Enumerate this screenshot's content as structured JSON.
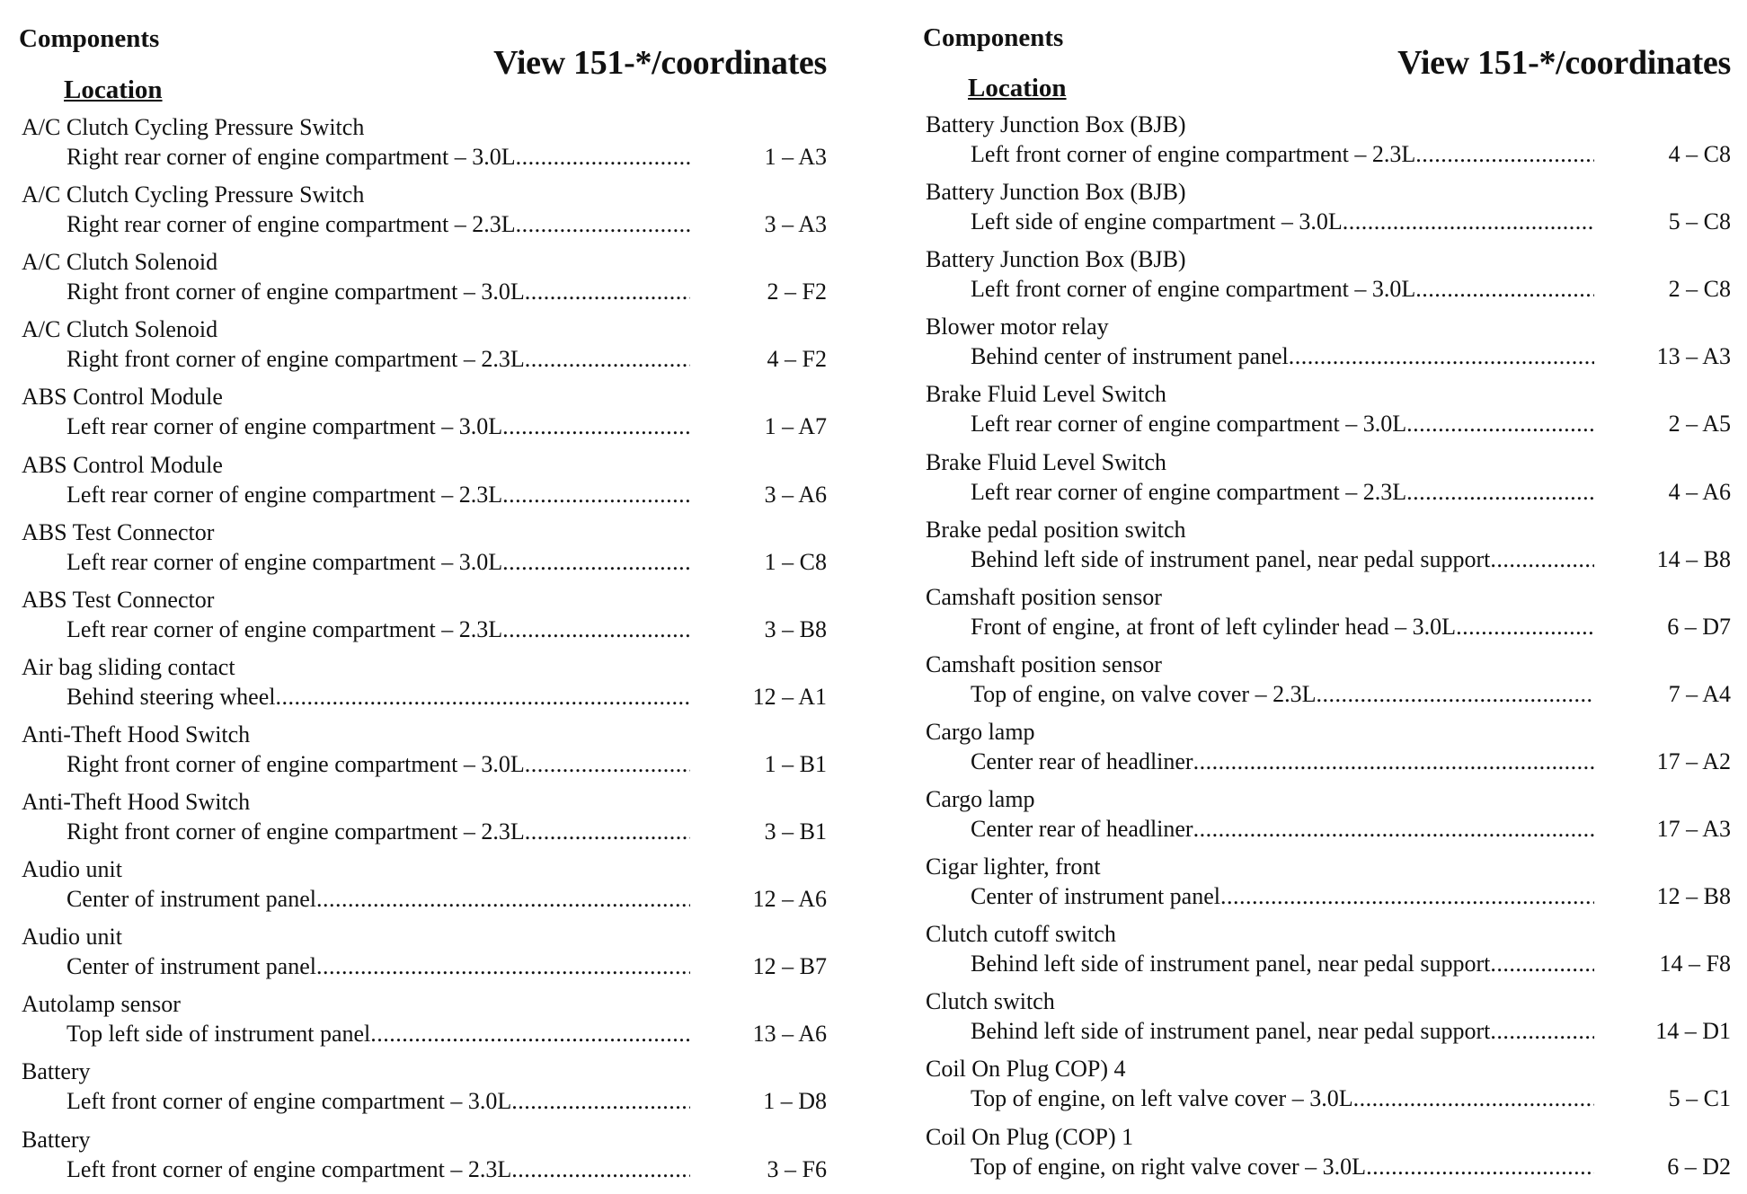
{
  "left": {
    "heading_components": "Components",
    "heading_location": "Location",
    "heading_view": "View 151-*/coordinates",
    "entries": [
      {
        "name": "A/C Clutch Cycling Pressure Switch",
        "location": "Right rear corner of engine compartment – 3.0L",
        "code": "1 – A3"
      },
      {
        "name": "A/C Clutch Cycling Pressure Switch",
        "location": "Right rear corner of engine compartment – 2.3L",
        "code": "3 – A3"
      },
      {
        "name": "A/C Clutch Solenoid",
        "location": "Right front corner of engine compartment – 3.0L",
        "code": "2 – F2"
      },
      {
        "name": "A/C Clutch Solenoid",
        "location": "Right front corner of engine compartment – 2.3L",
        "code": "4 – F2"
      },
      {
        "name": "ABS Control Module",
        "location": "Left rear corner of engine compartment – 3.0L",
        "code": "1 – A7"
      },
      {
        "name": "ABS Control Module",
        "location": "Left rear corner of engine compartment – 2.3L",
        "code": "3 – A6"
      },
      {
        "name": "ABS Test Connector",
        "location": "Left rear corner of engine compartment – 3.0L",
        "code": "1 – C8"
      },
      {
        "name": "ABS Test Connector",
        "location": "Left rear corner of engine compartment – 2.3L",
        "code": "3 – B8"
      },
      {
        "name": "Air bag sliding contact",
        "location": "Behind steering wheel",
        "code": "12 – A1"
      },
      {
        "name": "Anti-Theft Hood Switch",
        "location": "Right front corner of engine compartment – 3.0L",
        "code": "1 – B1"
      },
      {
        "name": "Anti-Theft Hood Switch",
        "location": "Right front corner of engine compartment – 2.3L",
        "code": "3 – B1"
      },
      {
        "name": "Audio unit",
        "location": "Center of instrument panel",
        "code": "12 – A6"
      },
      {
        "name": "Audio unit",
        "location": "Center of instrument panel",
        "code": "12 – B7"
      },
      {
        "name": "Autolamp sensor",
        "location": "Top left side of instrument panel",
        "code": "13 – A6"
      },
      {
        "name": "Battery",
        "location": "Left front corner of engine compartment – 3.0L",
        "code": "1 – D8"
      },
      {
        "name": "Battery",
        "location": "Left front corner of engine compartment – 2.3L",
        "code": "3 – F6"
      }
    ]
  },
  "right": {
    "heading_components": "Components",
    "heading_location": "Location",
    "heading_view": "View 151-*/coordinates",
    "entries": [
      {
        "name": "Battery Junction Box (BJB)",
        "location": "Left front corner of engine compartment – 2.3L",
        "code": "4 – C8"
      },
      {
        "name": "Battery Junction Box (BJB)",
        "location": "Left side of engine compartment – 3.0L",
        "code": "5 – C8"
      },
      {
        "name": "Battery Junction Box (BJB)",
        "location": "Left front corner of engine compartment – 3.0L",
        "code": "2 – C8"
      },
      {
        "name": "Blower motor relay",
        "location": "Behind center of instrument panel",
        "code": "13 – A3"
      },
      {
        "name": "Brake Fluid Level Switch",
        "location": "Left rear corner of engine compartment – 3.0L",
        "code": "2 – A5"
      },
      {
        "name": "Brake Fluid Level Switch",
        "location": "Left rear corner of engine compartment – 2.3L",
        "code": "4 – A6"
      },
      {
        "name": "Brake pedal position switch",
        "location": "Behind left side of instrument panel, near pedal support",
        "code": "14 – B8"
      },
      {
        "name": "Camshaft position sensor",
        "location": "Front of engine, at front of left cylinder head – 3.0L",
        "code": "6 – D7"
      },
      {
        "name": "Camshaft position sensor",
        "location": "Top of engine, on valve cover – 2.3L",
        "code": "7 – A4"
      },
      {
        "name": "Cargo lamp",
        "location": "Center rear of headliner",
        "code": "17 – A2"
      },
      {
        "name": "Cargo lamp",
        "location": "Center rear of headliner",
        "code": "17 – A3"
      },
      {
        "name": "Cigar lighter, front",
        "location": "Center of instrument panel",
        "code": "12 – B8"
      },
      {
        "name": "Clutch cutoff switch",
        "location": "Behind left side of instrument panel, near pedal support",
        "code": "14 – F8"
      },
      {
        "name": "Clutch switch",
        "location": "Behind left side of instrument panel, near pedal support",
        "code": "14 – D1"
      },
      {
        "name": "Coil On Plug COP) 4",
        "location": "Top of engine, on left valve cover – 3.0L",
        "code": "5 – C1"
      },
      {
        "name": "Coil On Plug (COP) 1",
        "location": "Top of engine, on right valve cover – 3.0L",
        "code": "6 – D2"
      }
    ]
  }
}
